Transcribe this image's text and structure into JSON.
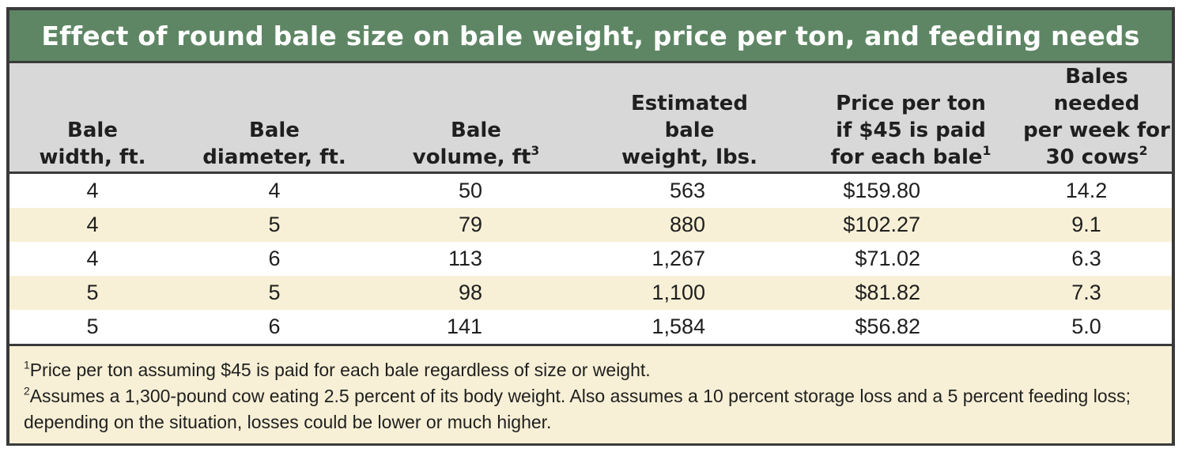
{
  "title": "Effect of round bale size on bale weight, price per ton, and feeding needs",
  "columns": [
    {
      "label": "Bale\nwidth, ft.",
      "sup": ""
    },
    {
      "label": "Bale\ndiameter, ft.",
      "sup": ""
    },
    {
      "label": "Bale\nvolume, ft",
      "sup": "3"
    },
    {
      "label": "Estimated\nbale\nweight, lbs.",
      "sup": ""
    },
    {
      "label": "Price per ton\nif $45 is paid\nfor each bale",
      "sup": "1"
    },
    {
      "label": "Bales needed\nper week for\n30 cows",
      "sup": "2"
    }
  ],
  "rows": [
    [
      "4",
      "4",
      "50",
      "563",
      "$159.80",
      "14.2"
    ],
    [
      "4",
      "5",
      "79",
      "880",
      "$102.27",
      "9.1"
    ],
    [
      "4",
      "6",
      "113",
      "1,267",
      "$71.02",
      "6.3"
    ],
    [
      "5",
      "5",
      "98",
      "1,100",
      "$81.82",
      "7.3"
    ],
    [
      "5",
      "6",
      "141",
      "1,584",
      "$56.82",
      "5.0"
    ]
  ],
  "footnotes": [
    {
      "mark": "1",
      "text": "Price per ton assuming $45 is paid for each bale regardless of size or weight."
    },
    {
      "mark": "2",
      "text": "Assumes a 1,300-pound cow eating 2.5 percent of its body weight. Also assumes a 10 percent storage loss and a 5 percent feeding loss; depending on the situation, losses could be lower or much higher."
    }
  ]
}
